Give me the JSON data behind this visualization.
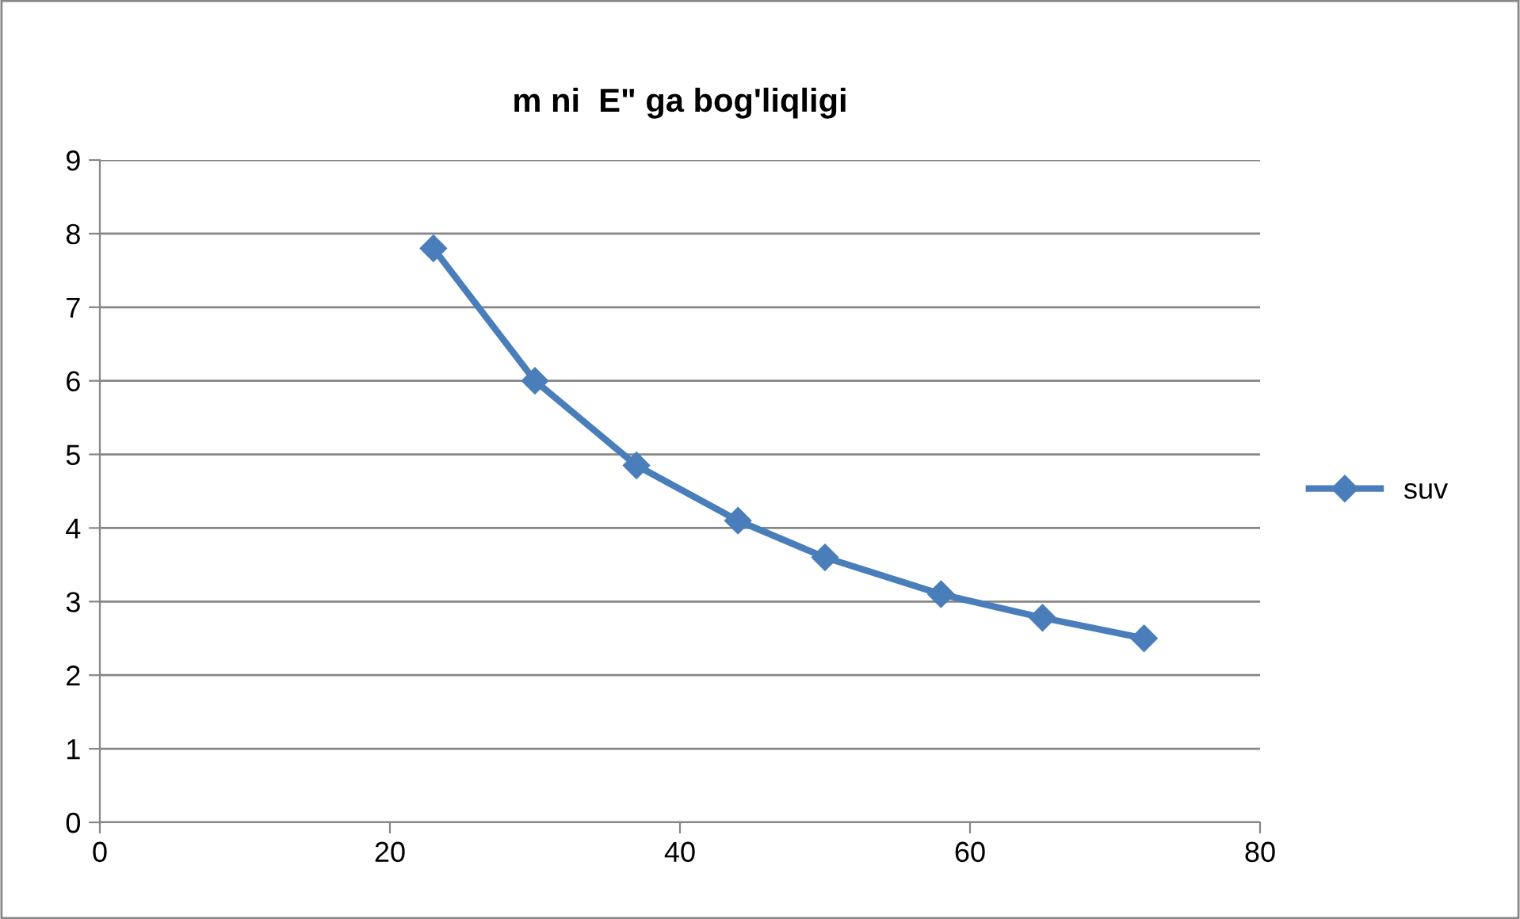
{
  "chart_data": {
    "type": "line",
    "title": "m ni  E\" ga bog'liqligi",
    "series": [
      {
        "name": "suv",
        "color": "#4a7ebb",
        "x": [
          23,
          30,
          37,
          44,
          50,
          58,
          65,
          72
        ],
        "values": [
          7.8,
          6.0,
          4.85,
          4.1,
          3.6,
          3.1,
          2.78,
          2.5
        ]
      }
    ],
    "xlim": [
      0,
      80
    ],
    "xticks": [
      0,
      20,
      40,
      60,
      80
    ],
    "ylim": [
      0,
      9
    ],
    "yticks": [
      0,
      1,
      2,
      3,
      4,
      5,
      6,
      7,
      8,
      9
    ],
    "grid": "y",
    "legend": "right",
    "marker": "diamond",
    "line_style": "solid"
  }
}
